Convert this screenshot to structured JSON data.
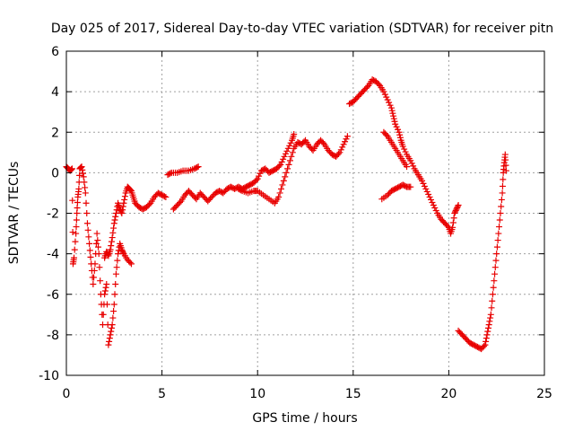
{
  "chart_data": {
    "type": "scatter",
    "title": "Day 025 of 2017, Sidereal Day-to-day VTEC variation (SDTVAR) for receiver pitn",
    "xlabel": "GPS time / hours",
    "ylabel": "SDTVAR / TECUs",
    "xlim": [
      0,
      25
    ],
    "ylim": [
      -10,
      6
    ],
    "xticks": [
      "0",
      "5",
      "10",
      "15",
      "20",
      "25"
    ],
    "yticks": [
      "-10",
      "-8",
      "-6",
      "-4",
      "-2",
      "0",
      "2",
      "4",
      "6"
    ],
    "grid": true,
    "marker": "plus",
    "marker_color": "#e80000",
    "segments": [
      [
        [
          0.0,
          0.3
        ],
        [
          0.1,
          0.2
        ],
        [
          0.2,
          0.1
        ],
        [
          0.3,
          0.2
        ],
        [
          0.35,
          -4.5
        ],
        [
          0.4,
          -4.2
        ],
        [
          0.5,
          -3.0
        ],
        [
          0.55,
          -2.0
        ],
        [
          0.6,
          -1.2
        ],
        [
          0.65,
          -0.8
        ],
        [
          0.7,
          0.2
        ],
        [
          0.8,
          0.3
        ],
        [
          0.9,
          -0.2
        ],
        [
          1.0,
          -1.0
        ],
        [
          1.1,
          -2.5
        ],
        [
          1.2,
          -3.5
        ],
        [
          1.3,
          -4.5
        ],
        [
          1.4,
          -5.5
        ],
        [
          1.5,
          -4.5
        ],
        [
          1.6,
          -3.0
        ],
        [
          1.7,
          -4.0
        ],
        [
          1.8,
          -6.0
        ],
        [
          1.9,
          -7.5
        ],
        [
          2.0,
          -6.0
        ],
        [
          2.1,
          -5.5
        ],
        [
          2.2,
          -8.5
        ],
        [
          2.3,
          -8.0
        ],
        [
          2.4,
          -7.5
        ],
        [
          2.5,
          -6.5
        ],
        [
          2.6,
          -5.0
        ],
        [
          2.7,
          -4.0
        ],
        [
          2.8,
          -3.5
        ],
        [
          2.9,
          -3.8
        ],
        [
          3.0,
          -4.0
        ],
        [
          3.2,
          -4.3
        ],
        [
          3.4,
          -4.5
        ]
      ],
      [
        [
          2.0,
          -4.2
        ],
        [
          2.1,
          -3.9
        ],
        [
          2.2,
          -4.1
        ],
        [
          2.3,
          -3.8
        ],
        [
          2.4,
          -3.2
        ],
        [
          2.5,
          -2.5
        ],
        [
          2.6,
          -2.0
        ],
        [
          2.7,
          -1.5
        ],
        [
          2.8,
          -1.8
        ],
        [
          2.9,
          -2.0
        ],
        [
          3.0,
          -1.5
        ],
        [
          3.1,
          -1.0
        ],
        [
          3.2,
          -0.7
        ],
        [
          3.3,
          -0.8
        ],
        [
          3.4,
          -0.9
        ],
        [
          3.5,
          -1.2
        ],
        [
          3.6,
          -1.5
        ],
        [
          3.8,
          -1.7
        ],
        [
          4.0,
          -1.8
        ],
        [
          4.2,
          -1.7
        ],
        [
          4.4,
          -1.5
        ],
        [
          4.6,
          -1.2
        ],
        [
          4.8,
          -1.0
        ],
        [
          5.0,
          -1.1
        ],
        [
          5.2,
          -1.2
        ]
      ],
      [
        [
          5.3,
          -0.1
        ],
        [
          5.5,
          0.0
        ],
        [
          5.8,
          0.0
        ],
        [
          6.1,
          0.1
        ],
        [
          6.4,
          0.1
        ],
        [
          6.7,
          0.2
        ],
        [
          6.9,
          0.3
        ]
      ],
      [
        [
          5.6,
          -1.8
        ],
        [
          5.8,
          -1.6
        ],
        [
          6.0,
          -1.4
        ],
        [
          6.2,
          -1.1
        ],
        [
          6.4,
          -0.9
        ],
        [
          6.6,
          -1.1
        ],
        [
          6.8,
          -1.3
        ],
        [
          7.0,
          -1.0
        ],
        [
          7.2,
          -1.2
        ],
        [
          7.4,
          -1.4
        ],
        [
          7.6,
          -1.2
        ],
        [
          7.8,
          -1.0
        ],
        [
          8.0,
          -0.9
        ],
        [
          8.2,
          -1.0
        ],
        [
          8.4,
          -0.8
        ],
        [
          8.6,
          -0.7
        ],
        [
          8.8,
          -0.8
        ],
        [
          9.0,
          -0.7
        ],
        [
          9.2,
          -0.8
        ],
        [
          9.4,
          -0.7
        ],
        [
          9.6,
          -0.6
        ],
        [
          9.8,
          -0.5
        ],
        [
          10.0,
          -0.3
        ],
        [
          10.2,
          0.1
        ],
        [
          10.4,
          0.2
        ],
        [
          10.6,
          0.0
        ],
        [
          10.8,
          0.1
        ],
        [
          11.0,
          0.2
        ],
        [
          11.2,
          0.4
        ],
        [
          11.4,
          0.8
        ],
        [
          11.6,
          1.2
        ],
        [
          11.8,
          1.6
        ],
        [
          11.9,
          1.9
        ]
      ],
      [
        [
          9.0,
          -0.8
        ],
        [
          9.2,
          -0.9
        ],
        [
          9.5,
          -1.0
        ],
        [
          9.8,
          -0.9
        ],
        [
          10.0,
          -0.9
        ],
        [
          10.3,
          -1.1
        ],
        [
          10.6,
          -1.3
        ],
        [
          10.9,
          -1.5
        ],
        [
          11.1,
          -1.2
        ],
        [
          11.3,
          -0.6
        ],
        [
          11.5,
          0.0
        ],
        [
          11.7,
          0.6
        ],
        [
          11.9,
          1.2
        ],
        [
          12.1,
          1.5
        ],
        [
          12.3,
          1.4
        ],
        [
          12.5,
          1.6
        ],
        [
          12.7,
          1.3
        ],
        [
          12.9,
          1.1
        ],
        [
          13.1,
          1.4
        ],
        [
          13.3,
          1.6
        ],
        [
          13.5,
          1.4
        ],
        [
          13.7,
          1.1
        ],
        [
          13.9,
          0.9
        ],
        [
          14.1,
          0.8
        ],
        [
          14.3,
          1.0
        ],
        [
          14.5,
          1.4
        ],
        [
          14.7,
          1.8
        ]
      ],
      [
        [
          14.8,
          3.4
        ],
        [
          15.0,
          3.5
        ],
        [
          15.2,
          3.7
        ],
        [
          15.4,
          3.9
        ],
        [
          15.6,
          4.1
        ],
        [
          15.8,
          4.3
        ],
        [
          16.0,
          4.6
        ],
        [
          16.2,
          4.5
        ],
        [
          16.4,
          4.3
        ],
        [
          16.6,
          4.0
        ],
        [
          16.8,
          3.6
        ],
        [
          17.0,
          3.2
        ],
        [
          17.1,
          2.8
        ],
        [
          17.2,
          2.4
        ],
        [
          17.4,
          2.0
        ],
        [
          17.5,
          1.6
        ],
        [
          17.6,
          1.3
        ],
        [
          17.8,
          0.9
        ],
        [
          18.0,
          0.6
        ],
        [
          18.2,
          0.2
        ],
        [
          18.4,
          -0.1
        ],
        [
          18.6,
          -0.4
        ],
        [
          18.8,
          -0.8
        ],
        [
          19.0,
          -1.2
        ],
        [
          19.2,
          -1.6
        ],
        [
          19.4,
          -2.0
        ],
        [
          19.6,
          -2.3
        ],
        [
          19.8,
          -2.5
        ],
        [
          20.0,
          -2.7
        ],
        [
          20.1,
          -3.0
        ],
        [
          20.2,
          -2.7
        ],
        [
          20.3,
          -2.0
        ],
        [
          20.4,
          -1.8
        ],
        [
          20.5,
          -1.6
        ]
      ],
      [
        [
          16.6,
          2.0
        ],
        [
          16.8,
          1.8
        ],
        [
          17.0,
          1.5
        ],
        [
          17.2,
          1.2
        ],
        [
          17.4,
          0.9
        ],
        [
          17.6,
          0.6
        ],
        [
          17.8,
          0.3
        ]
      ],
      [
        [
          16.5,
          -1.3
        ],
        [
          16.8,
          -1.1
        ],
        [
          17.0,
          -0.9
        ],
        [
          17.2,
          -0.8
        ],
        [
          17.4,
          -0.7
        ],
        [
          17.6,
          -0.6
        ],
        [
          17.8,
          -0.7
        ],
        [
          18.0,
          -0.7
        ]
      ],
      [
        [
          20.5,
          -7.8
        ],
        [
          20.7,
          -8.0
        ],
        [
          20.9,
          -8.2
        ],
        [
          21.1,
          -8.4
        ],
        [
          21.3,
          -8.5
        ],
        [
          21.5,
          -8.6
        ],
        [
          21.7,
          -8.7
        ],
        [
          21.9,
          -8.5
        ],
        [
          22.0,
          -8.0
        ],
        [
          22.1,
          -7.5
        ],
        [
          22.2,
          -7.0
        ],
        [
          22.3,
          -6.0
        ],
        [
          22.4,
          -5.0
        ],
        [
          22.5,
          -4.0
        ],
        [
          22.6,
          -3.0
        ],
        [
          22.7,
          -2.0
        ],
        [
          22.8,
          -1.0
        ],
        [
          22.85,
          0.0
        ],
        [
          22.9,
          0.5
        ],
        [
          22.95,
          0.9
        ],
        [
          23.0,
          0.1
        ]
      ]
    ]
  }
}
